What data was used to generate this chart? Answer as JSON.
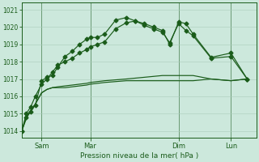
{
  "xlabel": "Pression niveau de la mer( hPa )",
  "ylim": [
    1013.6,
    1021.4
  ],
  "yticks": [
    1014,
    1015,
    1016,
    1017,
    1018,
    1019,
    1020,
    1021
  ],
  "xlim": [
    0,
    13.0
  ],
  "bg_color": "#cce8dc",
  "grid_color": "#aaccbb",
  "line_color": "#1a5c1a",
  "xtick_labels": [
    "Sam",
    "Mar",
    "Dim",
    "Lun"
  ],
  "xtick_positions": [
    1.1,
    3.8,
    8.7,
    11.6
  ],
  "series_x": [
    [
      0.0,
      0.25,
      0.5,
      0.75,
      1.1,
      1.4,
      1.7,
      2.0,
      2.4,
      2.8,
      3.2,
      3.6,
      3.8,
      4.2,
      4.6,
      5.2,
      5.8,
      6.3,
      6.8,
      7.3,
      7.8,
      8.2,
      8.7,
      9.1,
      9.5,
      10.5,
      11.6,
      12.5
    ],
    [
      0.0,
      0.25,
      0.5,
      0.75,
      1.1,
      1.4,
      1.7,
      2.0,
      2.4,
      2.8,
      3.2,
      3.6,
      3.8,
      4.2,
      4.6,
      5.2,
      5.8,
      6.3,
      6.8,
      7.3,
      7.8,
      8.2,
      8.7,
      9.1,
      9.5,
      10.5,
      11.6,
      12.5
    ],
    [
      0.0,
      0.25,
      0.5,
      0.75,
      1.1,
      1.4,
      1.7,
      2.0,
      2.4,
      2.8,
      3.2,
      3.6,
      3.8,
      4.2,
      4.6,
      5.2,
      5.8,
      6.3,
      6.8,
      7.3,
      7.8,
      8.2,
      8.7,
      9.1,
      9.5,
      10.5,
      11.6,
      12.5
    ],
    [
      0.0,
      0.25,
      0.5,
      0.75,
      1.1,
      1.4,
      1.7,
      2.0,
      2.4,
      2.8,
      3.2,
      3.6,
      3.8,
      4.2,
      4.6,
      5.2,
      5.8,
      6.3,
      6.8,
      7.3,
      7.8,
      8.2,
      8.7,
      9.1,
      9.5,
      10.5,
      11.6,
      12.5
    ]
  ],
  "series_y": [
    [
      1014.0,
      1014.8,
      1015.1,
      1015.5,
      1016.9,
      1017.1,
      1017.2,
      1017.7,
      1018.3,
      1018.6,
      1019.0,
      1019.3,
      1019.4,
      1019.4,
      1019.6,
      1020.4,
      1020.55,
      1020.35,
      1020.2,
      1020.0,
      1019.8,
      1019.0,
      1020.3,
      1020.2,
      1019.6,
      1018.25,
      1018.5,
      1017.0
    ],
    [
      1014.0,
      1014.8,
      1015.2,
      1015.55,
      1016.2,
      1016.4,
      1016.5,
      1016.55,
      1016.6,
      1016.65,
      1016.7,
      1016.75,
      1016.8,
      1016.85,
      1016.9,
      1016.95,
      1017.0,
      1017.05,
      1017.1,
      1017.15,
      1017.2,
      1017.2,
      1017.2,
      1017.2,
      1017.2,
      1017.0,
      1016.9,
      1017.0
    ],
    [
      1014.0,
      1015.0,
      1015.4,
      1016.0,
      1016.7,
      1017.0,
      1017.4,
      1017.8,
      1018.0,
      1018.2,
      1018.5,
      1018.7,
      1018.85,
      1019.0,
      1019.15,
      1019.9,
      1020.25,
      1020.35,
      1020.1,
      1019.9,
      1019.7,
      1019.1,
      1020.2,
      1019.8,
      1019.5,
      1018.2,
      1018.3,
      1017.0
    ],
    [
      1014.0,
      1014.7,
      1015.2,
      1015.55,
      1016.2,
      1016.4,
      1016.5,
      1016.5,
      1016.5,
      1016.55,
      1016.6,
      1016.65,
      1016.7,
      1016.75,
      1016.8,
      1016.85,
      1016.9,
      1016.9,
      1016.9,
      1016.9,
      1016.9,
      1016.9,
      1016.9,
      1016.9,
      1016.9,
      1017.0,
      1016.9,
      1017.0
    ]
  ],
  "marker_series": [
    0,
    2
  ],
  "marker": "D",
  "markersize": 2.5,
  "linewidth": 0.85
}
